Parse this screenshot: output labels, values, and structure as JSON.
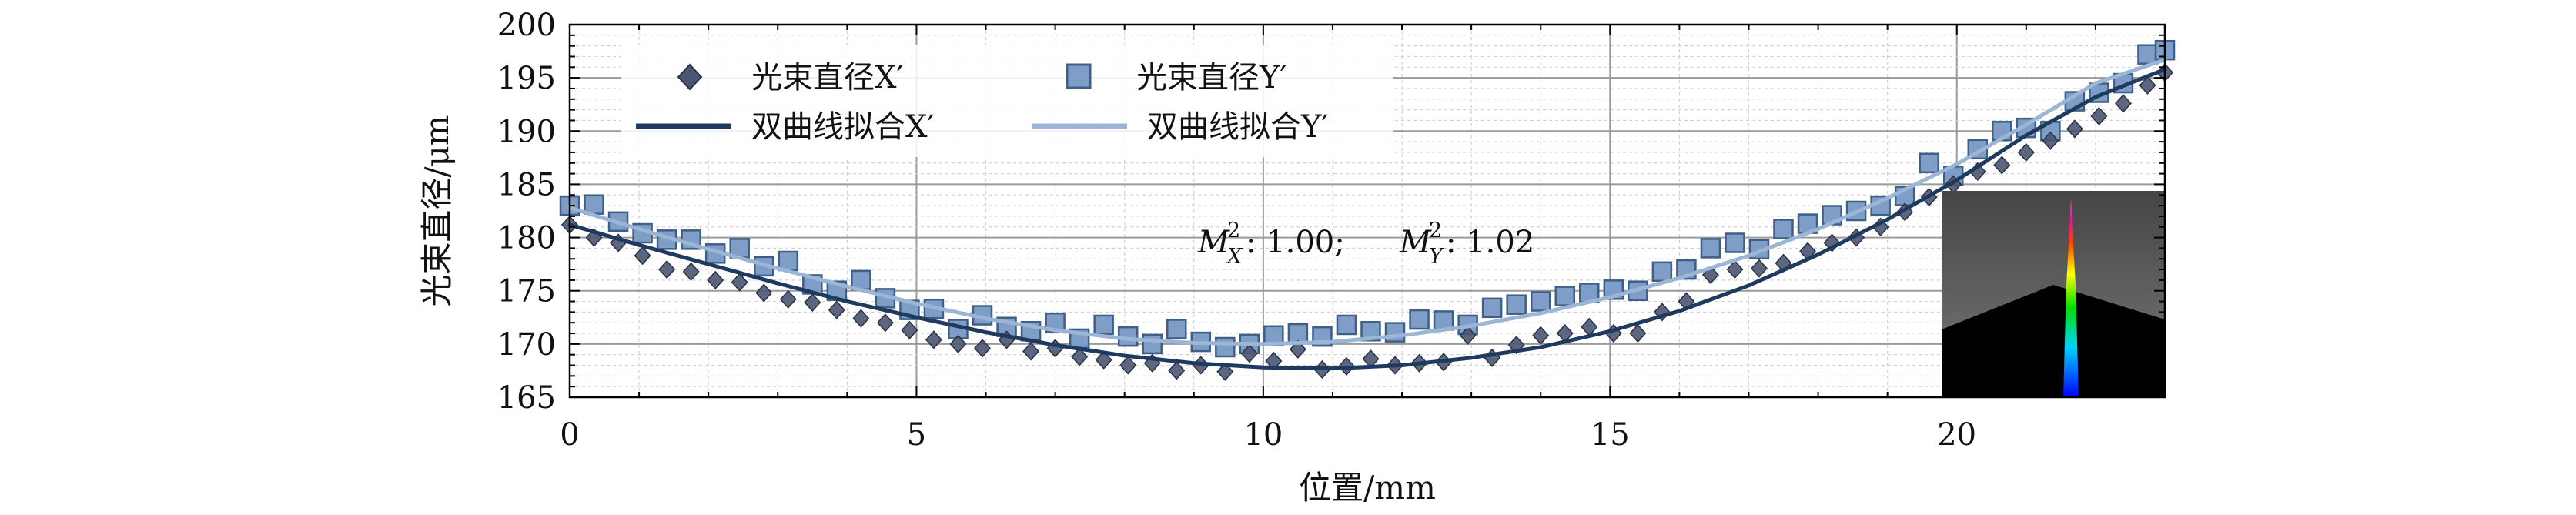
{
  "chart_data": {
    "type": "scatter",
    "xlabel": "位置/mm",
    "ylabel": "光束直径/μm",
    "xlim": [
      0,
      23
    ],
    "ylim": [
      165,
      200
    ],
    "xticks": [
      "0",
      "5",
      "10",
      "15",
      "20"
    ],
    "yticks": [
      "165",
      "170",
      "175",
      "180",
      "185",
      "190",
      "195",
      "200"
    ],
    "grid": true,
    "legend_position": "top-left",
    "annotation": {
      "label_x": "M",
      "sub_x": "X",
      "val_x": ": 1.00;",
      "label_y": "M",
      "sub_y": "Y",
      "val_y": ": 1.02",
      "sup": "2"
    },
    "inset": "beam-profile-image",
    "colors": {
      "x_points": "#4a5570",
      "x_fit": "#1f3a5f",
      "y_points": "#7e9ec8",
      "y_points_edge": "#3f5f86",
      "y_fit": "#9bb5d6"
    },
    "series": [
      {
        "name": "光束直径X′",
        "kind": "points",
        "marker": "diamond",
        "x": [
          0,
          0.35,
          0.7,
          1.05,
          1.4,
          1.75,
          2.1,
          2.45,
          2.8,
          3.15,
          3.5,
          3.85,
          4.2,
          4.55,
          4.9,
          5.25,
          5.6,
          5.95,
          6.3,
          6.65,
          7.0,
          7.35,
          7.7,
          8.05,
          8.4,
          8.75,
          9.1,
          9.45,
          9.8,
          10.15,
          10.5,
          10.85,
          11.2,
          11.55,
          11.9,
          12.25,
          12.6,
          12.95,
          13.3,
          13.65,
          14.0,
          14.35,
          14.7,
          15.05,
          15.4,
          15.75,
          16.1,
          16.45,
          16.8,
          17.15,
          17.5,
          17.85,
          18.2,
          18.55,
          18.9,
          19.25,
          19.6,
          19.95,
          20.3,
          20.65,
          21.0,
          21.35,
          21.7,
          22.05,
          22.4,
          22.75,
          23.0
        ],
        "y": [
          181.2,
          180.0,
          179.5,
          178.3,
          177.0,
          176.8,
          176.0,
          175.8,
          174.8,
          174.2,
          173.9,
          173.2,
          172.4,
          172.0,
          171.3,
          170.4,
          170.0,
          169.6,
          170.4,
          169.3,
          169.6,
          168.8,
          168.5,
          168.0,
          168.2,
          167.5,
          168.0,
          167.4,
          169.1,
          168.4,
          169.5,
          167.6,
          167.9,
          168.6,
          168.0,
          168.2,
          168.3,
          170.8,
          168.7,
          169.9,
          170.8,
          171.0,
          171.6,
          171.0,
          171.0,
          173.0,
          174.0,
          176.5,
          177.0,
          177.1,
          177.6,
          178.7,
          179.5,
          180.0,
          181.0,
          182.4,
          183.8,
          185.0,
          186.2,
          186.8,
          188.0,
          189.1,
          190.2,
          191.4,
          192.6,
          194.3,
          195.5
        ]
      },
      {
        "name": "光束直径Y′",
        "kind": "points",
        "marker": "square",
        "x": [
          0,
          0.35,
          0.7,
          1.05,
          1.4,
          1.75,
          2.1,
          2.45,
          2.8,
          3.15,
          3.5,
          3.85,
          4.2,
          4.55,
          4.9,
          5.25,
          5.6,
          5.95,
          6.3,
          6.65,
          7.0,
          7.35,
          7.7,
          8.05,
          8.4,
          8.75,
          9.1,
          9.45,
          9.8,
          10.15,
          10.5,
          10.85,
          11.2,
          11.55,
          11.9,
          12.25,
          12.6,
          12.95,
          13.3,
          13.65,
          14.0,
          14.35,
          14.7,
          15.05,
          15.4,
          15.75,
          16.1,
          16.45,
          16.8,
          17.15,
          17.5,
          17.85,
          18.2,
          18.55,
          18.9,
          19.25,
          19.6,
          19.95,
          20.3,
          20.65,
          21.0,
          21.35,
          21.7,
          22.05,
          22.4,
          22.75,
          23.0
        ],
        "y": [
          183.0,
          183.1,
          181.5,
          180.4,
          179.8,
          179.8,
          178.5,
          179.0,
          177.3,
          177.8,
          175.6,
          175.0,
          176.0,
          174.3,
          173.2,
          173.3,
          171.4,
          172.7,
          171.6,
          171.2,
          172.0,
          170.5,
          171.8,
          170.7,
          170.0,
          171.4,
          170.2,
          169.7,
          170.0,
          170.8,
          171.0,
          170.7,
          171.8,
          171.2,
          171.1,
          172.3,
          172.2,
          171.8,
          173.4,
          173.7,
          174.0,
          174.5,
          174.8,
          175.1,
          175.0,
          176.8,
          177.0,
          179.0,
          179.5,
          178.9,
          180.8,
          181.3,
          182.1,
          182.5,
          183.0,
          183.9,
          187.0,
          185.8,
          188.3,
          190.0,
          190.3,
          190.0,
          192.8,
          193.6,
          194.5,
          197.2,
          197.6
        ]
      },
      {
        "name": "双曲线拟合X′",
        "kind": "line",
        "x": [
          0,
          1,
          2,
          3,
          4,
          5,
          6,
          7,
          8,
          9,
          10,
          11,
          12,
          13,
          14,
          15,
          16,
          17,
          18,
          19,
          20,
          21,
          22,
          23
        ],
        "y": [
          181.2,
          179.3,
          177.5,
          175.7,
          174.0,
          172.5,
          171.1,
          169.9,
          168.9,
          168.2,
          167.8,
          167.7,
          168.0,
          168.7,
          169.7,
          171.2,
          173.1,
          175.5,
          178.4,
          181.7,
          185.4,
          189.6,
          193.2,
          195.8
        ]
      },
      {
        "name": "双曲线拟合Y′",
        "kind": "line",
        "x": [
          0,
          1,
          2,
          3,
          4,
          5,
          6,
          7,
          8,
          9,
          10,
          11,
          12,
          13,
          14,
          15,
          16,
          17,
          18,
          19,
          20,
          21,
          22,
          23
        ],
        "y": [
          182.8,
          180.8,
          178.9,
          177.1,
          175.4,
          173.8,
          172.4,
          171.3,
          170.5,
          170.1,
          170.0,
          170.2,
          170.8,
          171.7,
          172.9,
          174.4,
          176.2,
          178.3,
          180.8,
          183.7,
          186.9,
          190.6,
          194.5,
          196.7
        ]
      }
    ]
  }
}
